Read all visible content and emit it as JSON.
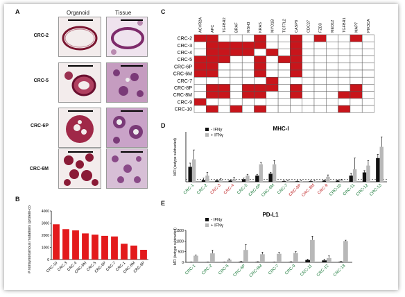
{
  "panels": {
    "A": "A",
    "B": "B",
    "C": "C",
    "D": "D",
    "E": "E"
  },
  "histology": {
    "columns": [
      "Organoid",
      "Tissue"
    ],
    "rows": [
      "CRC-2",
      "CRC-5",
      "CRC-6P",
      "CRC-6M"
    ]
  },
  "colors": {
    "mut": "#c8151b",
    "bar_b": "#e31a1c",
    "black": "#111111",
    "gray": "#b8b8b8"
  },
  "chart_data": [
    {
      "panel": "B",
      "type": "bar",
      "ylabel": "# nonsynonymous mutations (protein-coding)",
      "ylim": [
        0,
        4000
      ],
      "yticks": [
        0,
        1000,
        2000,
        3000,
        4000
      ],
      "categories": [
        "CRC-10",
        "CRC-3",
        "CRC-4",
        "CRC-6M",
        "CRC-5",
        "CRC-6P",
        "CRC-7",
        "CRC-1",
        "CRC-8M",
        "CRC-8P"
      ],
      "values": [
        2900,
        2500,
        2400,
        2150,
        2050,
        1950,
        1900,
        1300,
        1150,
        800
      ]
    },
    {
      "panel": "C",
      "type": "heatmap",
      "genes": [
        "ACVR2A",
        "APC",
        "TGFBR2",
        "BRAF",
        "MSH3",
        "KRAS",
        "MYO1B",
        "TCF7L2",
        "CASP8",
        "CDC27",
        "FZD3",
        "MED12",
        "TGFBR1",
        "MAP7",
        "PIK3CA"
      ],
      "samples": [
        "CRC-2",
        "CRC-3",
        "CRC-4",
        "CRC-5",
        "CRC-6P",
        "CRC-6M",
        "CRC-7",
        "CRC-8P",
        "CRC-8M",
        "CRC-9",
        "CRC-10"
      ],
      "matrix": [
        [
          1,
          1,
          0,
          0,
          0,
          1,
          0,
          0,
          1,
          0,
          1,
          0,
          0,
          1,
          0
        ],
        [
          0,
          1,
          1,
          1,
          1,
          1,
          0,
          0,
          1,
          0,
          0,
          0,
          0,
          0,
          0
        ],
        [
          0,
          1,
          1,
          1,
          1,
          0,
          1,
          0,
          1,
          0,
          0,
          0,
          0,
          0,
          0
        ],
        [
          1,
          1,
          1,
          0,
          0,
          1,
          0,
          1,
          1,
          0,
          0,
          0,
          0,
          0,
          0
        ],
        [
          1,
          1,
          0,
          0,
          0,
          1,
          0,
          0,
          1,
          0,
          0,
          0,
          0,
          0,
          0
        ],
        [
          1,
          1,
          0,
          0,
          0,
          1,
          0,
          0,
          1,
          0,
          0,
          0,
          0,
          0,
          0
        ],
        [
          0,
          0,
          0,
          0,
          0,
          0,
          1,
          0,
          0,
          0,
          0,
          0,
          0,
          0,
          0
        ],
        [
          0,
          1,
          1,
          0,
          1,
          1,
          1,
          0,
          1,
          0,
          0,
          0,
          0,
          1,
          0
        ],
        [
          0,
          1,
          1,
          0,
          1,
          1,
          0,
          0,
          1,
          0,
          0,
          0,
          1,
          1,
          0
        ],
        [
          1,
          0,
          0,
          0,
          0,
          0,
          0,
          0,
          0,
          0,
          0,
          0,
          0,
          0,
          0
        ],
        [
          0,
          1,
          0,
          1,
          0,
          1,
          0,
          0,
          0,
          0,
          0,
          0,
          1,
          0,
          0
        ]
      ]
    },
    {
      "panel": "D",
      "type": "bar",
      "title": "MHC-I",
      "ylabel": "MFI (isotype subtracted)",
      "legend": [
        "- IFNγ",
        "+ IFNγ"
      ],
      "categories": [
        "CRC-1",
        "CRC-2",
        "CRC-3",
        "CRC-4",
        "CRC-5",
        "CRC-6P",
        "CRC-6M",
        "CRC-7",
        "CRC-8P",
        "CRC-8M",
        "CRC-9",
        "CRC-10",
        "CRC-11",
        "CRC-12",
        "CRC-13"
      ],
      "category_colors": [
        "g",
        "g",
        "r",
        "r",
        "g",
        "g",
        "g",
        "g",
        "r",
        "r",
        "r",
        "g",
        "g",
        "g",
        "g"
      ],
      "ylim": [
        0,
        8
      ],
      "series": [
        {
          "name": "- IFNγ",
          "values": [
            2.4,
            0.3,
            0.2,
            0.2,
            0.4,
            1.0,
            1.3,
            0.1,
            0.1,
            0.1,
            0.2,
            0.2,
            1.0,
            1.5,
            3.8
          ],
          "err": [
            0.6,
            0.3,
            0.1,
            0.1,
            0.2,
            0.2,
            0.2,
            0.1,
            0.1,
            0.1,
            0.1,
            0.1,
            0.4,
            0.3,
            0.6
          ]
        },
        {
          "name": "+ IFNγ",
          "values": [
            3.6,
            1.0,
            0.3,
            0.4,
            1.0,
            2.8,
            2.8,
            0.2,
            0.1,
            0.1,
            0.8,
            0.3,
            2.0,
            2.6,
            5.6
          ],
          "err": [
            1.5,
            0.5,
            0.2,
            0.3,
            0.2,
            0.3,
            0.6,
            0.1,
            0.1,
            0.1,
            0.3,
            0.1,
            1.8,
            0.8,
            1.6
          ]
        }
      ]
    },
    {
      "panel": "E",
      "type": "bar",
      "title": "PD-L1",
      "ylabel": "MFI (isotype subtracted)",
      "legend": [
        "- IFNγ",
        "+ IFNγ"
      ],
      "categories": [
        "CRC-1",
        "CRC-2",
        "CRC-5",
        "CRC-6P",
        "CRC-6M",
        "CRC-7",
        "CRC-9",
        "CRC-11",
        "CRC-12",
        "CRC-13"
      ],
      "category_colors": [
        "g",
        "g",
        "g",
        "g",
        "g",
        "g",
        "g",
        "g",
        "g",
        "g"
      ],
      "ylim": [
        0,
        1500
      ],
      "yticks": [
        0,
        500,
        1000,
        1500
      ],
      "series": [
        {
          "name": "- IFNγ",
          "values": [
            10,
            10,
            10,
            30,
            20,
            10,
            20,
            110,
            90,
            30
          ],
          "err": [
            5,
            5,
            5,
            10,
            10,
            5,
            10,
            40,
            60,
            10
          ]
        },
        {
          "name": "+ IFNγ",
          "values": [
            310,
            420,
            120,
            580,
            380,
            400,
            440,
            1050,
            200,
            1000
          ],
          "err": [
            40,
            150,
            40,
            250,
            100,
            70,
            60,
            180,
            100,
            40
          ]
        }
      ]
    }
  ]
}
